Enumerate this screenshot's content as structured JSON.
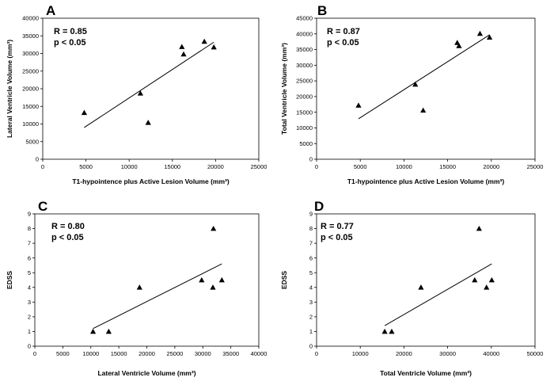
{
  "chart_data": [
    {
      "panel": "A",
      "type": "scatter",
      "stats": [
        "R = 0.85",
        "p < 0.05"
      ],
      "xlabel": "T1-hypointence plus Active Lesion Volume (mm³)",
      "ylabel": "Lateral Ventricle Volume (mm³)",
      "xlim": [
        0,
        25000
      ],
      "ylim": [
        0,
        40000
      ],
      "xticks": [
        0,
        5000,
        10000,
        15000,
        20000,
        25000
      ],
      "yticks": [
        0,
        5000,
        10000,
        15000,
        20000,
        25000,
        30000,
        35000,
        40000
      ],
      "points": [
        {
          "x": 4800,
          "y": 13200
        },
        {
          "x": 11300,
          "y": 18700
        },
        {
          "x": 12200,
          "y": 10400
        },
        {
          "x": 16100,
          "y": 31900
        },
        {
          "x": 16300,
          "y": 29800
        },
        {
          "x": 18700,
          "y": 33400
        },
        {
          "x": 19800,
          "y": 31800
        }
      ],
      "fit_line": [
        {
          "x": 4800,
          "y": 9000
        },
        {
          "x": 19800,
          "y": 33200
        }
      ]
    },
    {
      "panel": "B",
      "type": "scatter",
      "stats": [
        "R = 0.87",
        "p < 0.05"
      ],
      "xlabel": "T1-hypointence plus Active Lesion Volume (mm³)",
      "ylabel": "Total Ventricle Volume (mm³)",
      "xlim": [
        0,
        25000
      ],
      "ylim": [
        0,
        45000
      ],
      "xticks": [
        0,
        5000,
        10000,
        15000,
        20000,
        25000
      ],
      "yticks": [
        0,
        5000,
        10000,
        15000,
        20000,
        25000,
        30000,
        35000,
        40000,
        45000
      ],
      "points": [
        {
          "x": 4800,
          "y": 17200
        },
        {
          "x": 11300,
          "y": 23900
        },
        {
          "x": 12200,
          "y": 15600
        },
        {
          "x": 16100,
          "y": 37200
        },
        {
          "x": 16300,
          "y": 36200
        },
        {
          "x": 18700,
          "y": 40100
        },
        {
          "x": 19800,
          "y": 38900
        }
      ],
      "fit_line": [
        {
          "x": 4800,
          "y": 12900
        },
        {
          "x": 19800,
          "y": 39700
        }
      ]
    },
    {
      "panel": "C",
      "type": "scatter",
      "stats": [
        "R = 0.80",
        "p < 0.05"
      ],
      "xlabel": "Lateral Ventricle Volume (mm³)",
      "ylabel": "EDSS",
      "xlim": [
        0,
        40000
      ],
      "ylim": [
        0,
        9
      ],
      "xticks": [
        0,
        5000,
        10000,
        15000,
        20000,
        25000,
        30000,
        35000,
        40000
      ],
      "yticks": [
        0,
        1,
        2,
        3,
        4,
        5,
        6,
        7,
        8,
        9
      ],
      "points": [
        {
          "x": 10400,
          "y": 1
        },
        {
          "x": 13200,
          "y": 1
        },
        {
          "x": 18700,
          "y": 4
        },
        {
          "x": 29800,
          "y": 4.5
        },
        {
          "x": 31800,
          "y": 4
        },
        {
          "x": 31900,
          "y": 8
        },
        {
          "x": 33400,
          "y": 4.5
        }
      ],
      "fit_line": [
        {
          "x": 10400,
          "y": 1.2
        },
        {
          "x": 33400,
          "y": 5.6
        }
      ]
    },
    {
      "panel": "D",
      "type": "scatter",
      "stats": [
        "R = 0.77",
        "p < 0.05"
      ],
      "xlabel": "Total Ventricle Volume (mm³)",
      "ylabel": "EDSS",
      "xlim": [
        0,
        50000
      ],
      "ylim": [
        0,
        9
      ],
      "xticks": [
        0,
        10000,
        20000,
        30000,
        40000,
        50000
      ],
      "yticks": [
        0,
        1,
        2,
        3,
        4,
        5,
        6,
        7,
        8,
        9
      ],
      "points": [
        {
          "x": 15600,
          "y": 1
        },
        {
          "x": 17200,
          "y": 1
        },
        {
          "x": 23900,
          "y": 4
        },
        {
          "x": 36200,
          "y": 4.5
        },
        {
          "x": 37200,
          "y": 8
        },
        {
          "x": 38900,
          "y": 4
        },
        {
          "x": 40100,
          "y": 4.5
        }
      ],
      "fit_line": [
        {
          "x": 15600,
          "y": 1.4
        },
        {
          "x": 40100,
          "y": 5.6
        }
      ]
    }
  ]
}
